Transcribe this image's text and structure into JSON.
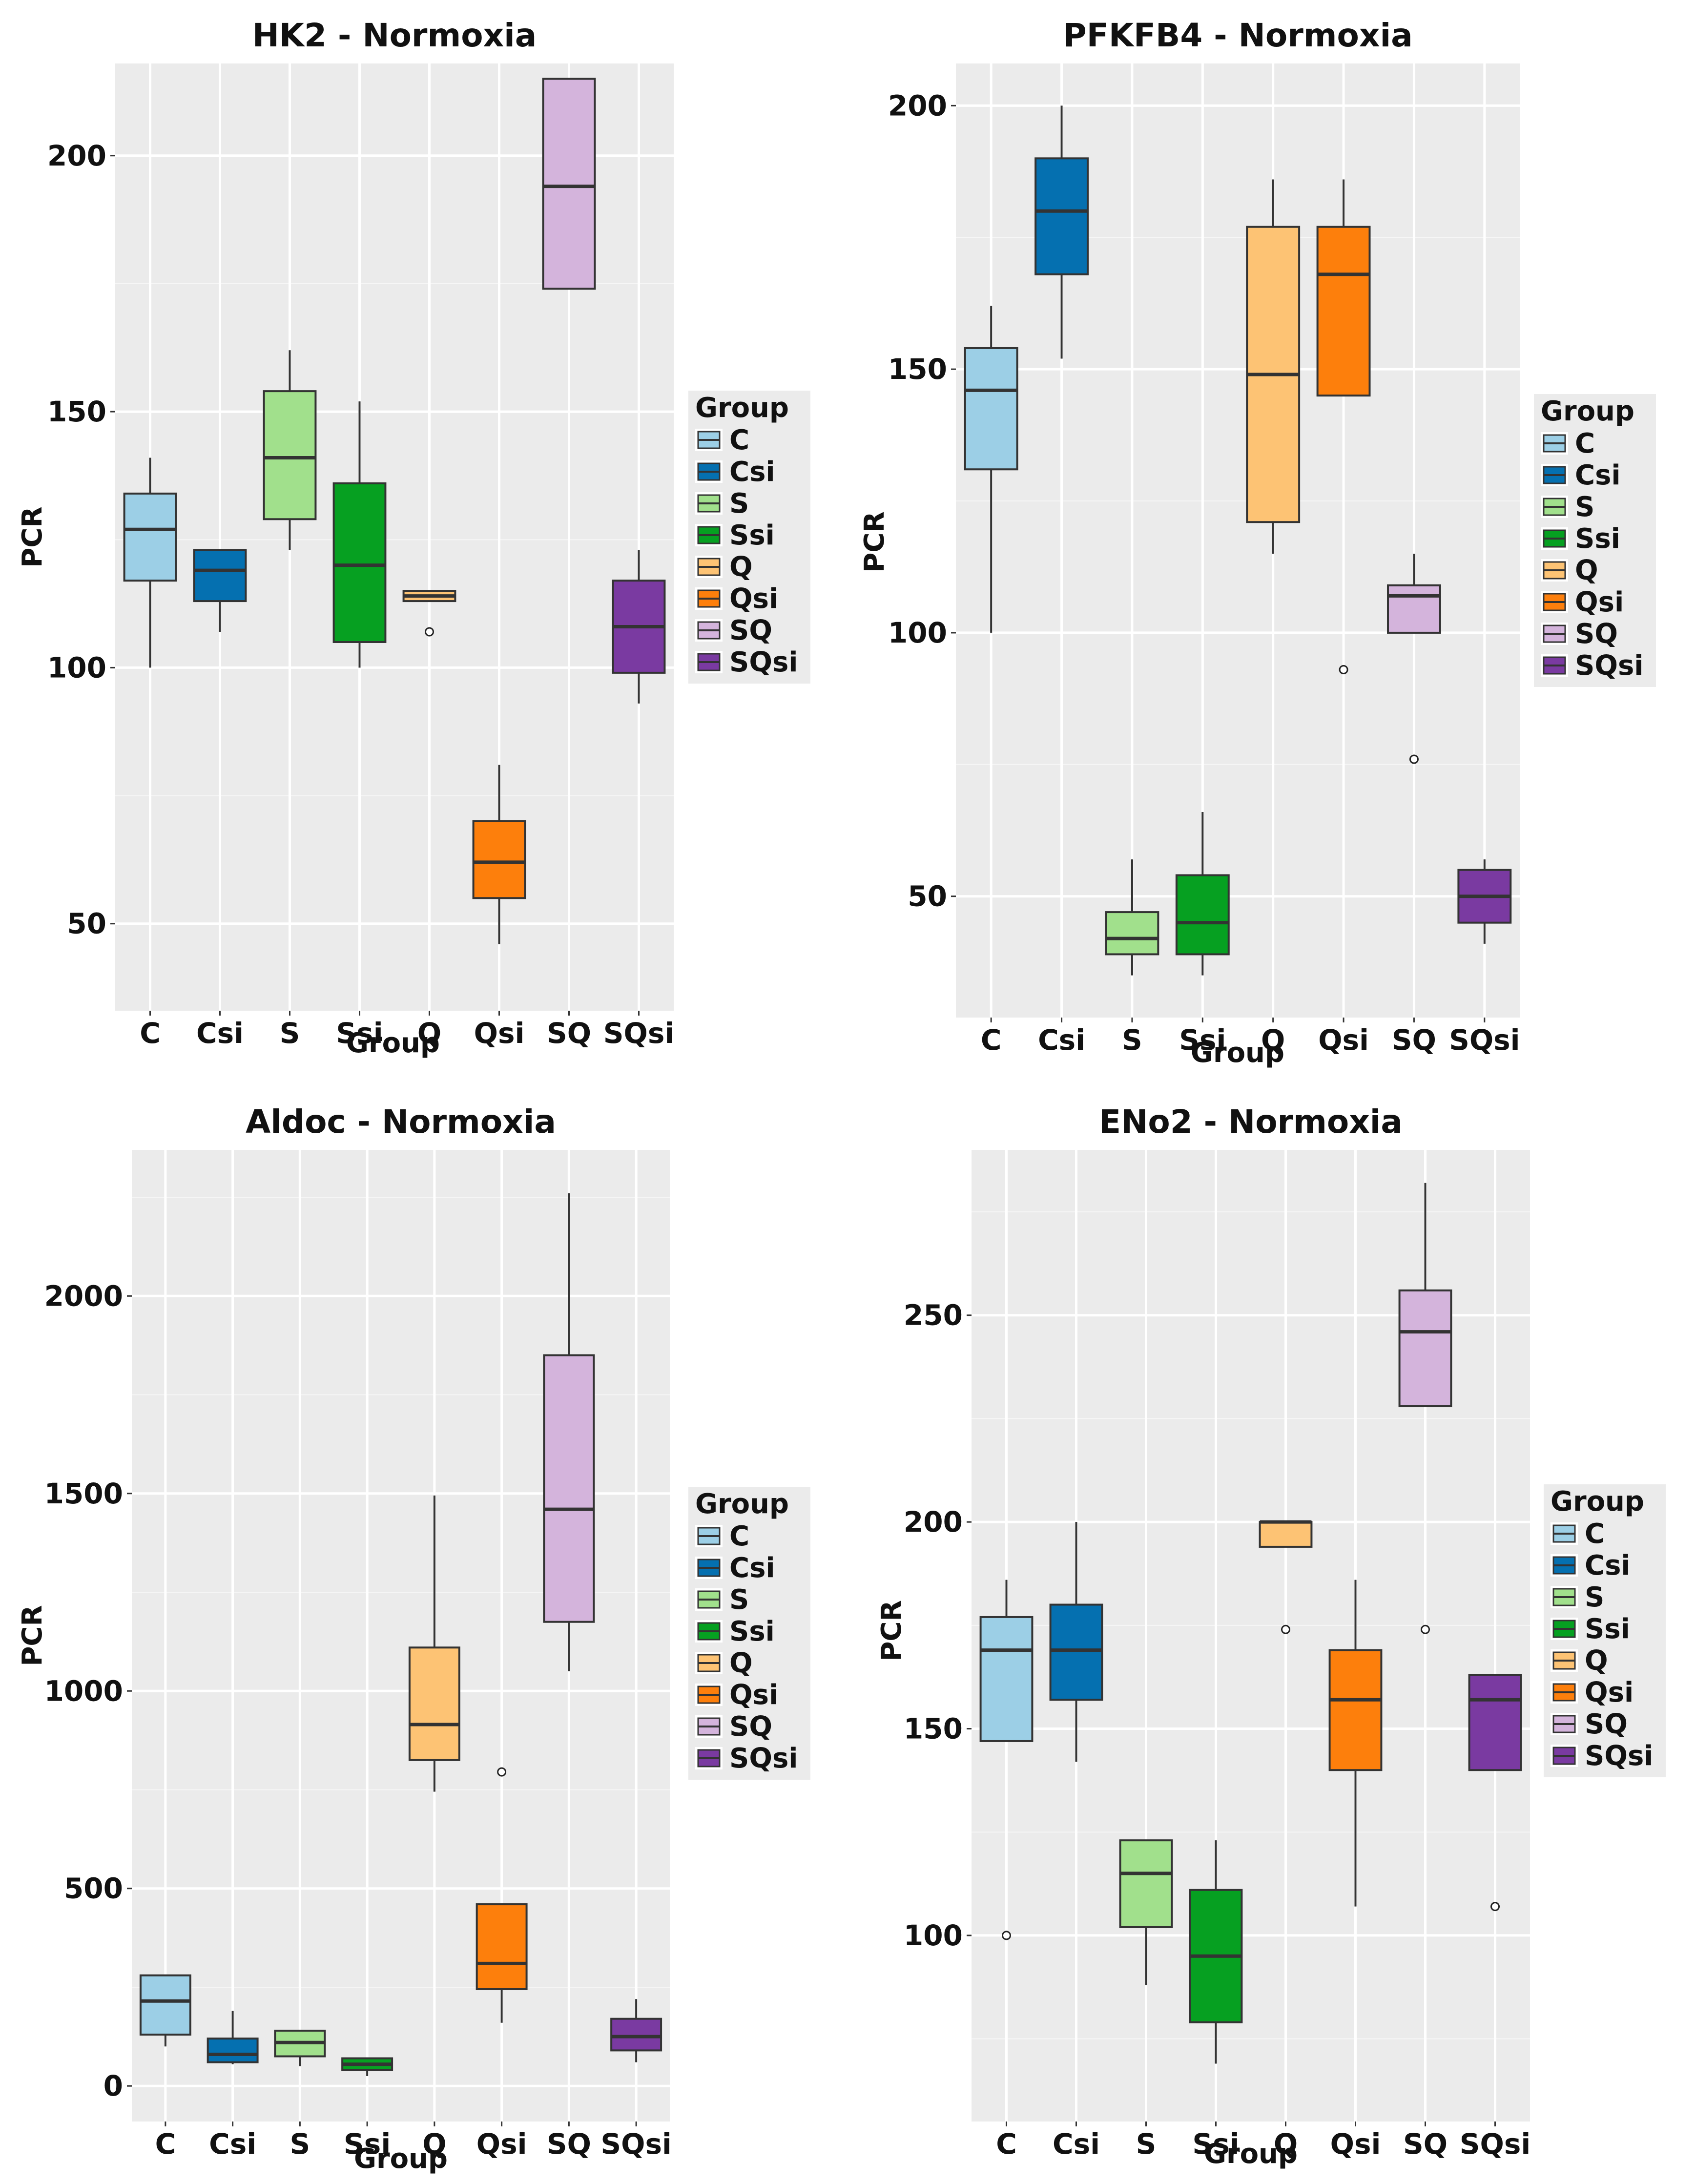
{
  "group_colors": {
    "C": "#9ccfe6",
    "Csi": "#0570b0",
    "S": "#a1e08c",
    "Ssi": "#06a021",
    "Q": "#fdc374",
    "Qsi": "#fd7f0c",
    "SQ": "#d4b4dc",
    "SQsi": "#7a3aa1"
  },
  "chart_data": [
    {
      "type": "box",
      "title": "HK2 - Normoxia",
      "xlabel": "Group",
      "ylabel": "PCR",
      "ylim": [
        33,
        218
      ],
      "yticks": [
        50,
        100,
        150,
        200
      ],
      "categories": [
        "C",
        "Csi",
        "S",
        "Ssi",
        "Q",
        "Qsi",
        "SQ",
        "SQsi"
      ],
      "legend_title": "Group",
      "legend_position": "right",
      "boxes": [
        {
          "group": "C",
          "low": 100,
          "q1": 117,
          "median": 127,
          "q3": 134,
          "high": 141,
          "outliers": []
        },
        {
          "group": "Csi",
          "low": 107,
          "q1": 113,
          "median": 119,
          "q3": 123,
          "high": 123,
          "outliers": []
        },
        {
          "group": "S",
          "low": 123,
          "q1": 129,
          "median": 141,
          "q3": 154,
          "high": 162,
          "outliers": []
        },
        {
          "group": "Ssi",
          "low": 100,
          "q1": 105,
          "median": 120,
          "q3": 136,
          "high": 152,
          "outliers": []
        },
        {
          "group": "Q",
          "low": 113,
          "q1": 113,
          "median": 114,
          "q3": 115,
          "high": 115,
          "outliers": [
            107
          ]
        },
        {
          "group": "Qsi",
          "low": 46,
          "q1": 55,
          "median": 62,
          "q3": 70,
          "high": 81,
          "outliers": []
        },
        {
          "group": "SQ",
          "low": 174,
          "q1": 174,
          "median": 194,
          "q3": 215,
          "high": 215,
          "outliers": []
        },
        {
          "group": "SQsi",
          "low": 93,
          "q1": 99,
          "median": 108,
          "q3": 117,
          "high": 123,
          "outliers": []
        }
      ]
    },
    {
      "type": "box",
      "title": "PFKFB4 - Normoxia",
      "xlabel": "Group",
      "ylabel": "PCR",
      "ylim": [
        27,
        208
      ],
      "yticks": [
        50,
        100,
        150,
        200
      ],
      "categories": [
        "C",
        "Csi",
        "S",
        "Ssi",
        "Q",
        "Qsi",
        "SQ",
        "SQsi"
      ],
      "legend_title": "Group",
      "legend_position": "right",
      "boxes": [
        {
          "group": "C",
          "low": 100,
          "q1": 131,
          "median": 146,
          "q3": 154,
          "high": 162,
          "outliers": []
        },
        {
          "group": "Csi",
          "low": 152,
          "q1": 168,
          "median": 180,
          "q3": 190,
          "high": 200,
          "outliers": []
        },
        {
          "group": "S",
          "low": 35,
          "q1": 39,
          "median": 42,
          "q3": 47,
          "high": 57,
          "outliers": []
        },
        {
          "group": "Ssi",
          "low": 35,
          "q1": 39,
          "median": 45,
          "q3": 54,
          "high": 66,
          "outliers": []
        },
        {
          "group": "Q",
          "low": 115,
          "q1": 121,
          "median": 149,
          "q3": 177,
          "high": 186,
          "outliers": []
        },
        {
          "group": "Qsi",
          "low": 145,
          "q1": 145,
          "median": 168,
          "q3": 177,
          "high": 186,
          "outliers": [
            93
          ]
        },
        {
          "group": "SQ",
          "low": 100,
          "q1": 100,
          "median": 107,
          "q3": 109,
          "high": 115,
          "outliers": [
            76
          ]
        },
        {
          "group": "SQsi",
          "low": 41,
          "q1": 45,
          "median": 50,
          "q3": 55,
          "high": 57,
          "outliers": []
        }
      ]
    },
    {
      "type": "box",
      "title": "Aldoc - Normoxia",
      "xlabel": "Group",
      "ylabel": "PCR",
      "ylim": [
        -90,
        2370
      ],
      "yticks": [
        0,
        500,
        1000,
        1500,
        2000
      ],
      "categories": [
        "C",
        "Csi",
        "S",
        "Ssi",
        "Q",
        "Qsi",
        "SQ",
        "SQsi"
      ],
      "legend_title": "Group",
      "legend_position": "right",
      "boxes": [
        {
          "group": "C",
          "low": 100,
          "q1": 130,
          "median": 215,
          "q3": 280,
          "high": 280,
          "outliers": []
        },
        {
          "group": "Csi",
          "low": 55,
          "q1": 60,
          "median": 80,
          "q3": 120,
          "high": 190,
          "outliers": []
        },
        {
          "group": "S",
          "low": 50,
          "q1": 75,
          "median": 110,
          "q3": 140,
          "high": 140,
          "outliers": []
        },
        {
          "group": "Ssi",
          "low": 25,
          "q1": 40,
          "median": 55,
          "q3": 70,
          "high": 70,
          "outliers": []
        },
        {
          "group": "Q",
          "low": 745,
          "q1": 825,
          "median": 915,
          "q3": 1110,
          "high": 1495,
          "outliers": []
        },
        {
          "group": "Qsi",
          "low": 160,
          "q1": 245,
          "median": 310,
          "q3": 460,
          "high": 460,
          "outliers": [
            795
          ]
        },
        {
          "group": "SQ",
          "low": 1050,
          "q1": 1175,
          "median": 1460,
          "q3": 1850,
          "high": 2260,
          "outliers": []
        },
        {
          "group": "SQsi",
          "low": 60,
          "q1": 90,
          "median": 125,
          "q3": 170,
          "high": 220,
          "outliers": []
        }
      ]
    },
    {
      "type": "box",
      "title": "ENo2 - Normoxia",
      "xlabel": "Group",
      "ylabel": "PCR",
      "ylim": [
        55,
        290
      ],
      "yticks": [
        100,
        150,
        200,
        250
      ],
      "categories": [
        "C",
        "Csi",
        "S",
        "Ssi",
        "Q",
        "Qsi",
        "SQ",
        "SQsi"
      ],
      "legend_title": "Group",
      "legend_position": "right",
      "boxes": [
        {
          "group": "C",
          "low": 147,
          "q1": 147,
          "median": 169,
          "q3": 177,
          "high": 186,
          "outliers": [
            100
          ]
        },
        {
          "group": "Csi",
          "low": 142,
          "q1": 157,
          "median": 169,
          "q3": 180,
          "high": 200,
          "outliers": []
        },
        {
          "group": "S",
          "low": 88,
          "q1": 102,
          "median": 115,
          "q3": 123,
          "high": 123,
          "outliers": []
        },
        {
          "group": "Ssi",
          "low": 69,
          "q1": 79,
          "median": 95,
          "q3": 111,
          "high": 123,
          "outliers": []
        },
        {
          "group": "Q",
          "low": 194,
          "q1": 194,
          "median": 200,
          "q3": 200,
          "high": 200,
          "outliers": [
            174
          ]
        },
        {
          "group": "Qsi",
          "low": 107,
          "q1": 140,
          "median": 157,
          "q3": 169,
          "high": 186,
          "outliers": []
        },
        {
          "group": "SQ",
          "low": 228,
          "q1": 228,
          "median": 246,
          "q3": 256,
          "high": 282,
          "outliers": [
            174
          ]
        },
        {
          "group": "SQsi",
          "low": 140,
          "q1": 140,
          "median": 157,
          "q3": 163,
          "high": 163,
          "outliers": [
            107
          ]
        }
      ]
    }
  ]
}
